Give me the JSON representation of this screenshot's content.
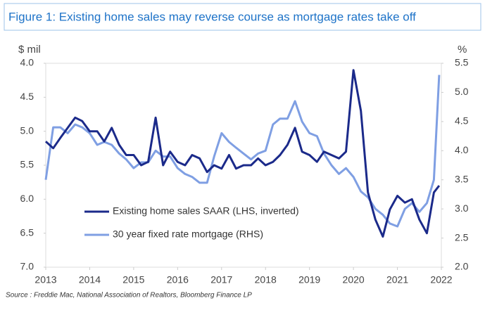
{
  "chart_data": {
    "type": "line",
    "title": "Figure 1: Existing home sales may reverse course as mortgage rates take off",
    "y_label": "$ mil",
    "y2_label": "%",
    "source": "Source : Freddie Mac, National Association of Realtors, Bloomberg Finance LP",
    "x": [
      2013,
      2013.17,
      2013.33,
      2013.5,
      2013.67,
      2013.83,
      2014,
      2014.17,
      2014.33,
      2014.5,
      2014.67,
      2014.83,
      2015,
      2015.17,
      2015.33,
      2015.5,
      2015.67,
      2015.83,
      2016,
      2016.17,
      2016.33,
      2016.5,
      2016.67,
      2016.83,
      2017,
      2017.17,
      2017.33,
      2017.5,
      2017.67,
      2017.83,
      2018,
      2018.17,
      2018.33,
      2018.5,
      2018.67,
      2018.83,
      2019,
      2019.17,
      2019.33,
      2019.5,
      2019.67,
      2019.83,
      2020,
      2020.17,
      2020.33,
      2020.5,
      2020.67,
      2020.83,
      2021,
      2021.17,
      2021.33,
      2021.5,
      2021.67,
      2021.83,
      2021.95
    ],
    "xlim": [
      2013,
      2022
    ],
    "xticks": [
      2013,
      2014,
      2015,
      2016,
      2017,
      2018,
      2019,
      2020,
      2021,
      2022
    ],
    "ylim": [
      4.0,
      7.0
    ],
    "y_inverted": true,
    "yticks": [
      {
        "value": 4.0,
        "label": "4.0"
      },
      4.5,
      {
        "value": 5.0,
        "label": "5.0"
      },
      5.5,
      {
        "value": 6.0,
        "label": "6.0"
      },
      6.5,
      {
        "value": 7.0,
        "label": "7.0"
      }
    ],
    "y2lim": [
      2.0,
      5.5
    ],
    "y2ticks": [
      {
        "value": 2.0,
        "label": "2.0"
      },
      2.5,
      {
        "value": 3.0,
        "label": "3.0"
      },
      3.5,
      {
        "value": 4.0,
        "label": "4.0"
      },
      4.5,
      {
        "value": 5.0,
        "label": "5.0"
      },
      5.5
    ],
    "legend": "lower left",
    "series": [
      {
        "name": "Existing home sales SAAR (LHS, inverted)",
        "color": "#1b2a8a",
        "values": [
          5.15,
          5.25,
          5.1,
          4.95,
          4.8,
          4.85,
          5.0,
          5.0,
          5.15,
          4.95,
          5.2,
          5.35,
          5.35,
          5.5,
          5.45,
          4.8,
          5.5,
          5.3,
          5.45,
          5.5,
          5.35,
          5.4,
          5.6,
          5.5,
          5.55,
          5.35,
          5.55,
          5.5,
          5.5,
          5.4,
          5.5,
          5.45,
          5.35,
          5.2,
          4.95,
          5.3,
          5.35,
          5.45,
          5.3,
          5.35,
          5.4,
          5.3,
          4.1,
          4.7,
          5.9,
          6.3,
          6.55,
          6.15,
          5.95,
          6.05,
          6.0,
          6.3,
          6.5,
          5.9,
          5.8
        ]
      },
      {
        "name": "30 year fixed rate mortgage (RHS)",
        "color": "#7f9fe3",
        "axis": "y2",
        "values": [
          3.5,
          4.4,
          4.4,
          4.3,
          4.45,
          4.4,
          4.3,
          4.1,
          4.15,
          4.1,
          3.95,
          3.85,
          3.7,
          3.8,
          3.8,
          4.0,
          3.9,
          3.9,
          3.7,
          3.6,
          3.55,
          3.45,
          3.45,
          3.9,
          4.3,
          4.15,
          4.05,
          3.95,
          3.85,
          3.95,
          4.0,
          4.45,
          4.55,
          4.55,
          4.85,
          4.5,
          4.3,
          4.25,
          3.95,
          3.75,
          3.6,
          3.7,
          3.55,
          3.3,
          3.2,
          3.0,
          2.9,
          2.75,
          2.7,
          3.0,
          3.1,
          2.95,
          3.1,
          3.5,
          5.3
        ]
      }
    ]
  }
}
